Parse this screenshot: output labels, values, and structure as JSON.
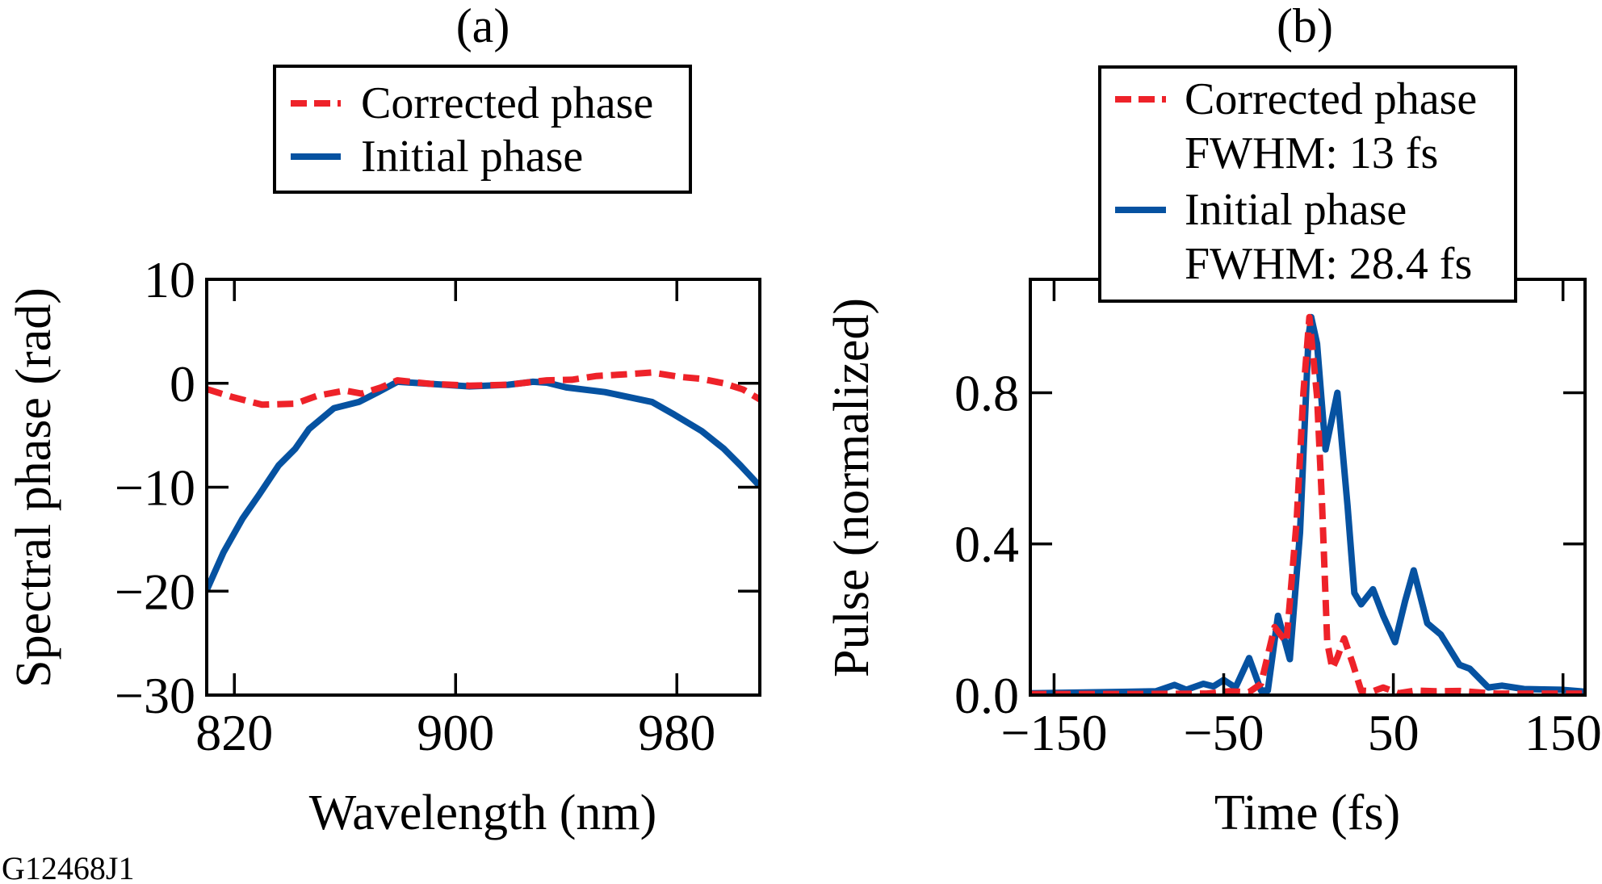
{
  "figure_id": "G12468J1",
  "colors": {
    "corrected": "#EE2229",
    "initial": "#0652A1"
  },
  "chart_data": [
    {
      "type": "line",
      "panel": "(a)",
      "title": "(a)",
      "xlabel": "Wavelength (nm)",
      "ylabel": "Spectral phase (rad)",
      "xlim": [
        810,
        1010
      ],
      "ylim": [
        -30,
        10
      ],
      "xticks": [
        820,
        900,
        980
      ],
      "xtick_labels": [
        "820",
        "900",
        "980"
      ],
      "yticks": [
        10,
        0,
        -10,
        -20,
        -30
      ],
      "ytick_labels": [
        "10",
        "0",
        "−10",
        "−20",
        "−30"
      ],
      "grid": false,
      "legend_position": "top-center-outside",
      "legend": [
        {
          "label": "Corrected phase",
          "style": "dashed",
          "series": "corrected"
        },
        {
          "label": "Initial phase",
          "style": "solid",
          "series": "initial"
        }
      ],
      "series": [
        {
          "name": "Initial phase",
          "key": "initial",
          "style": "solid",
          "x": [
            810,
            816,
            823,
            829,
            836,
            842,
            847,
            856,
            865,
            872,
            879,
            891,
            905,
            919,
            928,
            933,
            940,
            954,
            971,
            979,
            989,
            997,
            1003,
            1010
          ],
          "y": [
            -19.9,
            -16.3,
            -13.0,
            -10.7,
            -7.9,
            -6.3,
            -4.4,
            -2.4,
            -1.8,
            -0.85,
            0.14,
            -0.06,
            -0.3,
            -0.14,
            0.14,
            0.06,
            -0.4,
            -0.85,
            -1.8,
            -3.0,
            -4.6,
            -6.3,
            -7.9,
            -9.9
          ]
        },
        {
          "name": "Corrected phase",
          "key": "corrected",
          "style": "dashed",
          "x": [
            810,
            819,
            830,
            842,
            850,
            860,
            866,
            873,
            879,
            891,
            905,
            919,
            933,
            942,
            951,
            961,
            971,
            981,
            989,
            997,
            1004,
            1010
          ],
          "y": [
            -0.56,
            -1.3,
            -2.06,
            -1.97,
            -1.2,
            -0.7,
            -1.0,
            -0.4,
            0.28,
            -0.06,
            -0.23,
            -0.14,
            0.28,
            0.34,
            0.7,
            0.85,
            1.04,
            0.62,
            0.42,
            0.0,
            -0.6,
            -1.55
          ]
        }
      ]
    },
    {
      "type": "line",
      "panel": "(b)",
      "title": "(b)",
      "xlabel": "Time (fs)",
      "ylabel": "Pulse (normalized)",
      "xlim": [
        -164,
        163
      ],
      "ylim": [
        0,
        1.1
      ],
      "xticks": [
        -150,
        -50,
        50,
        150
      ],
      "xtick_labels": [
        "−150",
        "−50",
        "50",
        "150"
      ],
      "yticks": [
        0.0,
        0.4,
        0.8
      ],
      "ytick_labels": [
        "0.0",
        "0.4",
        "0.8"
      ],
      "grid": false,
      "legend_position": "top-center-overlapping",
      "legend": [
        {
          "label": "Corrected phase",
          "sublabel": "FWHM: 13 fs",
          "style": "dashed",
          "series": "corrected"
        },
        {
          "label": "Initial phase",
          "sublabel": "FWHM: 28.4 fs",
          "style": "solid",
          "series": "initial"
        }
      ],
      "series": [
        {
          "name": "Initial phase",
          "key": "initial",
          "style": "solid",
          "fwhm_fs": 28.4,
          "x": [
            -164,
            -90,
            -79,
            -72,
            -62,
            -56,
            -50,
            -43,
            -35,
            -28,
            -24,
            -18,
            -11,
            -5,
            0,
            1.6,
            5,
            10,
            17,
            23,
            27,
            31,
            38,
            44,
            51,
            57,
            62,
            70,
            78,
            89,
            95,
            106,
            114,
            127,
            149,
            163
          ],
          "y": [
            0.005,
            0.01,
            0.027,
            0.014,
            0.03,
            0.023,
            0.04,
            0.02,
            0.098,
            0.012,
            0.012,
            0.21,
            0.095,
            0.43,
            0.95,
            1.0,
            0.93,
            0.65,
            0.8,
            0.5,
            0.27,
            0.24,
            0.28,
            0.21,
            0.14,
            0.25,
            0.33,
            0.19,
            0.16,
            0.08,
            0.07,
            0.02,
            0.025,
            0.016,
            0.014,
            0.009
          ]
        },
        {
          "name": "Corrected phase",
          "key": "corrected",
          "style": "dashed",
          "fwhm_fs": 13,
          "x": [
            -164,
            -100,
            -60,
            -47,
            -35,
            -28,
            -20,
            -13,
            -7,
            -3,
            0.5,
            5,
            8,
            11,
            14,
            17,
            21,
            26,
            31,
            38,
            44,
            53,
            63,
            75,
            89,
            110,
            140,
            163
          ],
          "y": [
            0.003,
            0.003,
            0.004,
            0.01,
            0.008,
            0.03,
            0.18,
            0.14,
            0.46,
            0.8,
            1.0,
            0.79,
            0.5,
            0.14,
            0.07,
            0.1,
            0.15,
            0.084,
            0.012,
            0.01,
            0.02,
            0.005,
            0.012,
            0.01,
            0.011,
            0.004,
            0.004,
            0.004
          ]
        }
      ]
    }
  ]
}
